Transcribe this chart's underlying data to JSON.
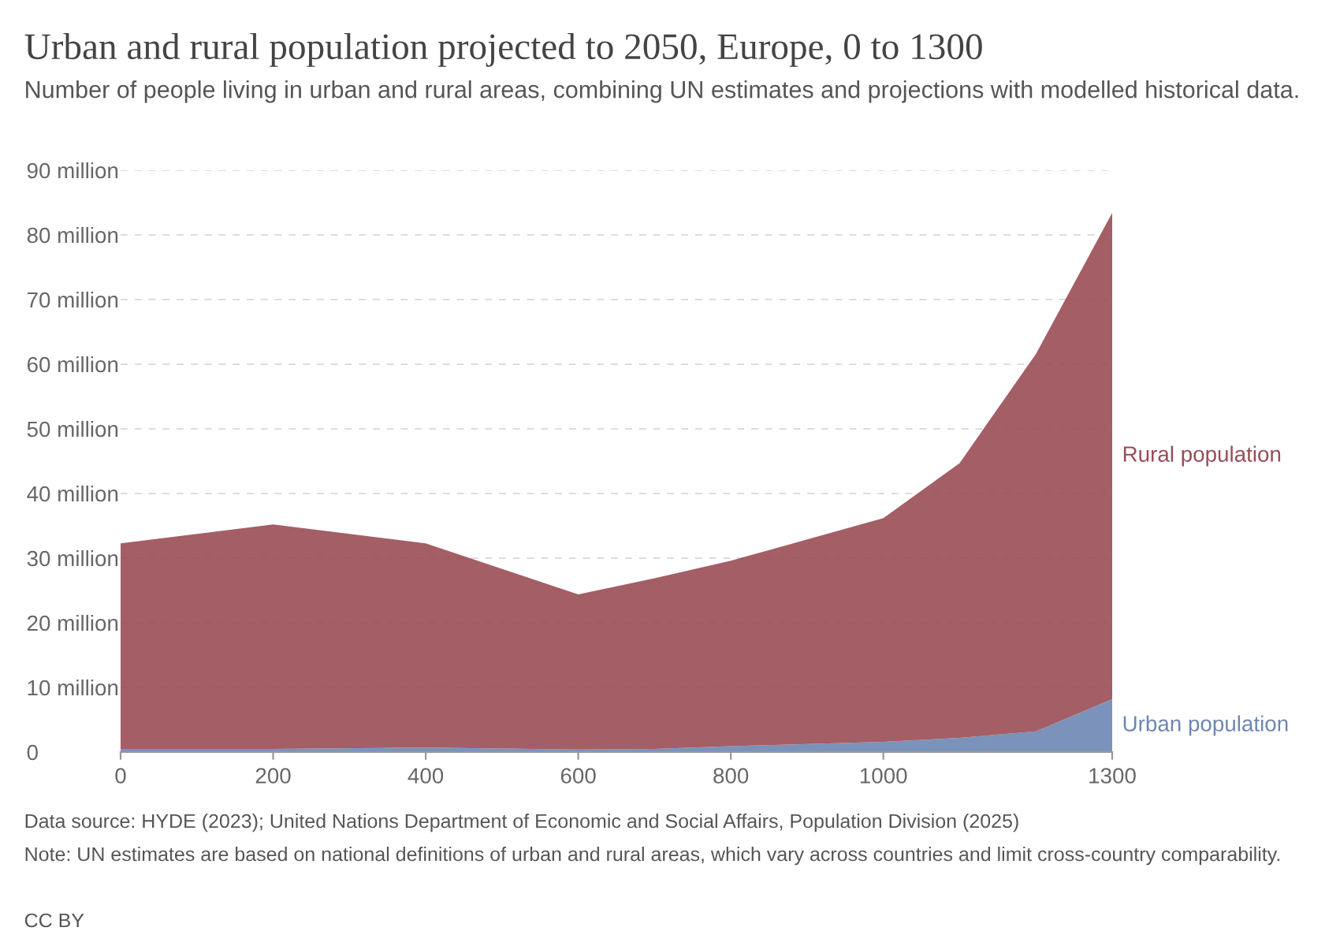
{
  "chart_data": {
    "type": "area",
    "stacked": true,
    "title": "Urban and rural population projected to 2050, Europe, 0 to 1300",
    "subtitle": "Number of people living in urban and rural areas, combining UN estimates and projections with modelled historical data.",
    "x": [
      0,
      200,
      400,
      600,
      700,
      800,
      1000,
      1100,
      1200,
      1300
    ],
    "series": [
      {
        "name": "Urban population",
        "color": "#6d87b2",
        "values": [
          0.5,
          0.5,
          0.7,
          0.4,
          0.5,
          0.9,
          1.6,
          2.2,
          3.2,
          8.2
        ]
      },
      {
        "name": "Rural population",
        "color": "#9a4c55",
        "values": [
          31.8,
          34.7,
          31.6,
          24.0,
          26.4,
          28.7,
          34.6,
          42.5,
          58.4,
          75.2
        ]
      }
    ],
    "xlim": [
      0,
      1300
    ],
    "xticks": [
      0,
      200,
      400,
      600,
      800,
      1000,
      1300
    ],
    "ylim": [
      0,
      90
    ],
    "yticks": [
      {
        "value": 0,
        "label": "0"
      },
      {
        "value": 10,
        "label": "10 million"
      },
      {
        "value": 20,
        "label": "20 million"
      },
      {
        "value": 30,
        "label": "30 million"
      },
      {
        "value": 40,
        "label": "40 million"
      },
      {
        "value": 50,
        "label": "50 million"
      },
      {
        "value": 60,
        "label": "60 million"
      },
      {
        "value": 70,
        "label": "70 million"
      },
      {
        "value": 80,
        "label": "80 million"
      },
      {
        "value": 90,
        "label": "90 million"
      }
    ],
    "grid": "y",
    "annotations": [
      "Data source: HYDE (2023); United Nations Department of Economic and Social Affairs, Population Division (2025)",
      "Note: UN estimates are based on national definitions of urban and rural areas, which vary across countries and limit cross-country comparability.",
      "CC BY"
    ]
  }
}
